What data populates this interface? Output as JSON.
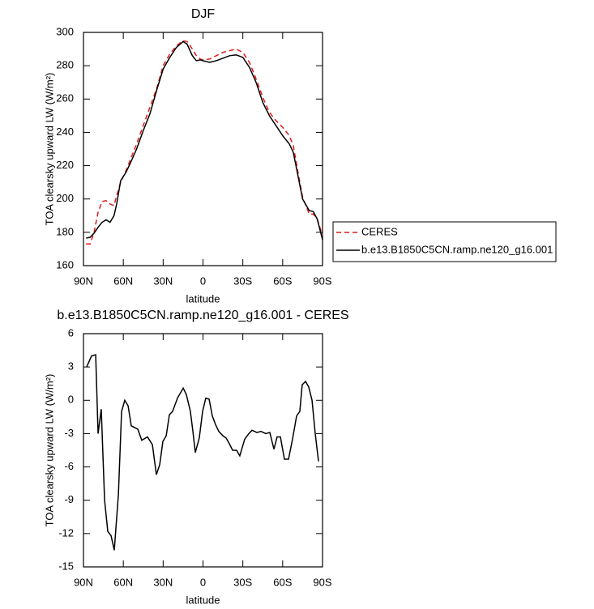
{
  "chart_data": [
    {
      "type": "line",
      "title": "DJF",
      "xlabel": "latitude",
      "ylabel": "TOA clearsky upward LW (W/m²)",
      "xlim": [
        90,
        -90
      ],
      "ylim": [
        160,
        300
      ],
      "xticks": [
        {
          "value": 90,
          "label": "90N"
        },
        {
          "value": 60,
          "label": "60N"
        },
        {
          "value": 30,
          "label": "30N"
        },
        0,
        {
          "value": -30,
          "label": "30S"
        },
        {
          "value": -60,
          "label": "60S"
        },
        {
          "value": -90,
          "label": "90S"
        }
      ],
      "yticks": [
        160,
        180,
        200,
        220,
        240,
        260,
        280,
        300
      ],
      "legend": "right",
      "x": [
        88,
        85,
        82,
        79,
        76,
        73,
        70,
        67,
        65,
        62,
        58,
        55,
        50,
        45,
        40,
        35,
        30,
        25,
        20,
        15,
        12,
        8,
        5,
        2,
        0,
        -5,
        -10,
        -15,
        -20,
        -25,
        -30,
        -35,
        -40,
        -45,
        -50,
        -55,
        -60,
        -65,
        -68,
        -72,
        -75,
        -80,
        -83,
        -86,
        -90
      ],
      "series": [
        {
          "name": "CERES",
          "color": "#e41a1c",
          "dash": true,
          "values": [
            173,
            173,
            180,
            192,
            198.5,
            199,
            197,
            196,
            202,
            210,
            217,
            223,
            233,
            244,
            255,
            266,
            280,
            287,
            292,
            295,
            294.5,
            290,
            286,
            284,
            283.5,
            284,
            286,
            288,
            289,
            290,
            288,
            282,
            272,
            261,
            252,
            247,
            243,
            238,
            232,
            214,
            201,
            191,
            191,
            188,
            178
          ]
        },
        {
          "name": "b.e13.B1850C5CN.ramp.ne120_g16.001",
          "color": "#000000",
          "dash": false,
          "values": [
            176.5,
            177,
            179.5,
            183,
            186,
            187.5,
            186,
            190,
            197,
            211,
            216,
            221,
            230,
            241,
            251,
            265,
            278,
            285,
            291,
            294.5,
            293,
            286,
            283,
            283.5,
            283,
            282,
            283,
            284.5,
            286,
            286.5,
            285,
            279,
            270,
            258,
            250,
            244,
            238,
            233,
            228,
            212,
            200,
            193,
            192.5,
            188,
            175.5
          ]
        }
      ]
    },
    {
      "type": "line",
      "title": "b.e13.B1850C5CN.ramp.ne120_g16.001 - CERES",
      "xlabel": "latitude",
      "ylabel": "TOA clearsky upward LW (W/m²)",
      "xlim": [
        90,
        -90
      ],
      "ylim": [
        -15,
        6
      ],
      "xticks": [
        {
          "value": 90,
          "label": "90N"
        },
        {
          "value": 60,
          "label": "60N"
        },
        {
          "value": 30,
          "label": "30N"
        },
        0,
        {
          "value": -30,
          "label": "30S"
        },
        {
          "value": -60,
          "label": "60S"
        },
        {
          "value": -90,
          "label": "90S"
        }
      ],
      "yticks": [
        -15,
        -12,
        -9,
        -6,
        -3,
        0,
        3,
        6
      ],
      "x": [
        87.6,
        83.9,
        80.8,
        79,
        76.6,
        74.1,
        71.7,
        69.2,
        66.8,
        63.7,
        61.3,
        58.9,
        56.4,
        54,
        49.1,
        46.1,
        41.8,
        38.1,
        35.1,
        32.6,
        30.2,
        27.7,
        25.3,
        22.9,
        19.2,
        14.9,
        12.5,
        9.5,
        7.6,
        5.8,
        2.8,
        0.3,
        -2.1,
        -4.6,
        -7,
        -9.5,
        -11.9,
        -15,
        -17.4,
        -19.8,
        -22.3,
        -25.3,
        -27.7,
        -31.4,
        -34.5,
        -36.9,
        -40.6,
        -43.6,
        -47.3,
        -50.3,
        -53.4,
        -55.8,
        -58.3,
        -61.3,
        -64.4,
        -67.4,
        -70.5,
        -72.9,
        -74.7,
        -77.2,
        -79.6,
        -82.1,
        -84.5,
        -87
      ],
      "series": [
        {
          "color": "#000000",
          "dash": false,
          "values": [
            3,
            4,
            4.1,
            -3,
            -0.8,
            -9,
            -11.8,
            -12.2,
            -13.5,
            -8.5,
            -1,
            0,
            -0.5,
            -2.3,
            -2.6,
            -3.6,
            -3.3,
            -4,
            -6.7,
            -5.8,
            -3.7,
            -3.2,
            -1.3,
            -1,
            0.2,
            1.1,
            0.5,
            -1,
            -2.8,
            -4.7,
            -3.4,
            -1,
            0.2,
            0.1,
            -1.4,
            -2.2,
            -2.8,
            -3.2,
            -3.4,
            -3.9,
            -4.5,
            -4.5,
            -5,
            -3.5,
            -3,
            -2.7,
            -2.9,
            -2.8,
            -3,
            -2.9,
            -4.4,
            -3.3,
            -3.3,
            -5.3,
            -5.3,
            -3.5,
            -1.4,
            -1,
            1.4,
            1.7,
            1.2,
            0,
            -3,
            -5.5
          ]
        }
      ]
    }
  ]
}
